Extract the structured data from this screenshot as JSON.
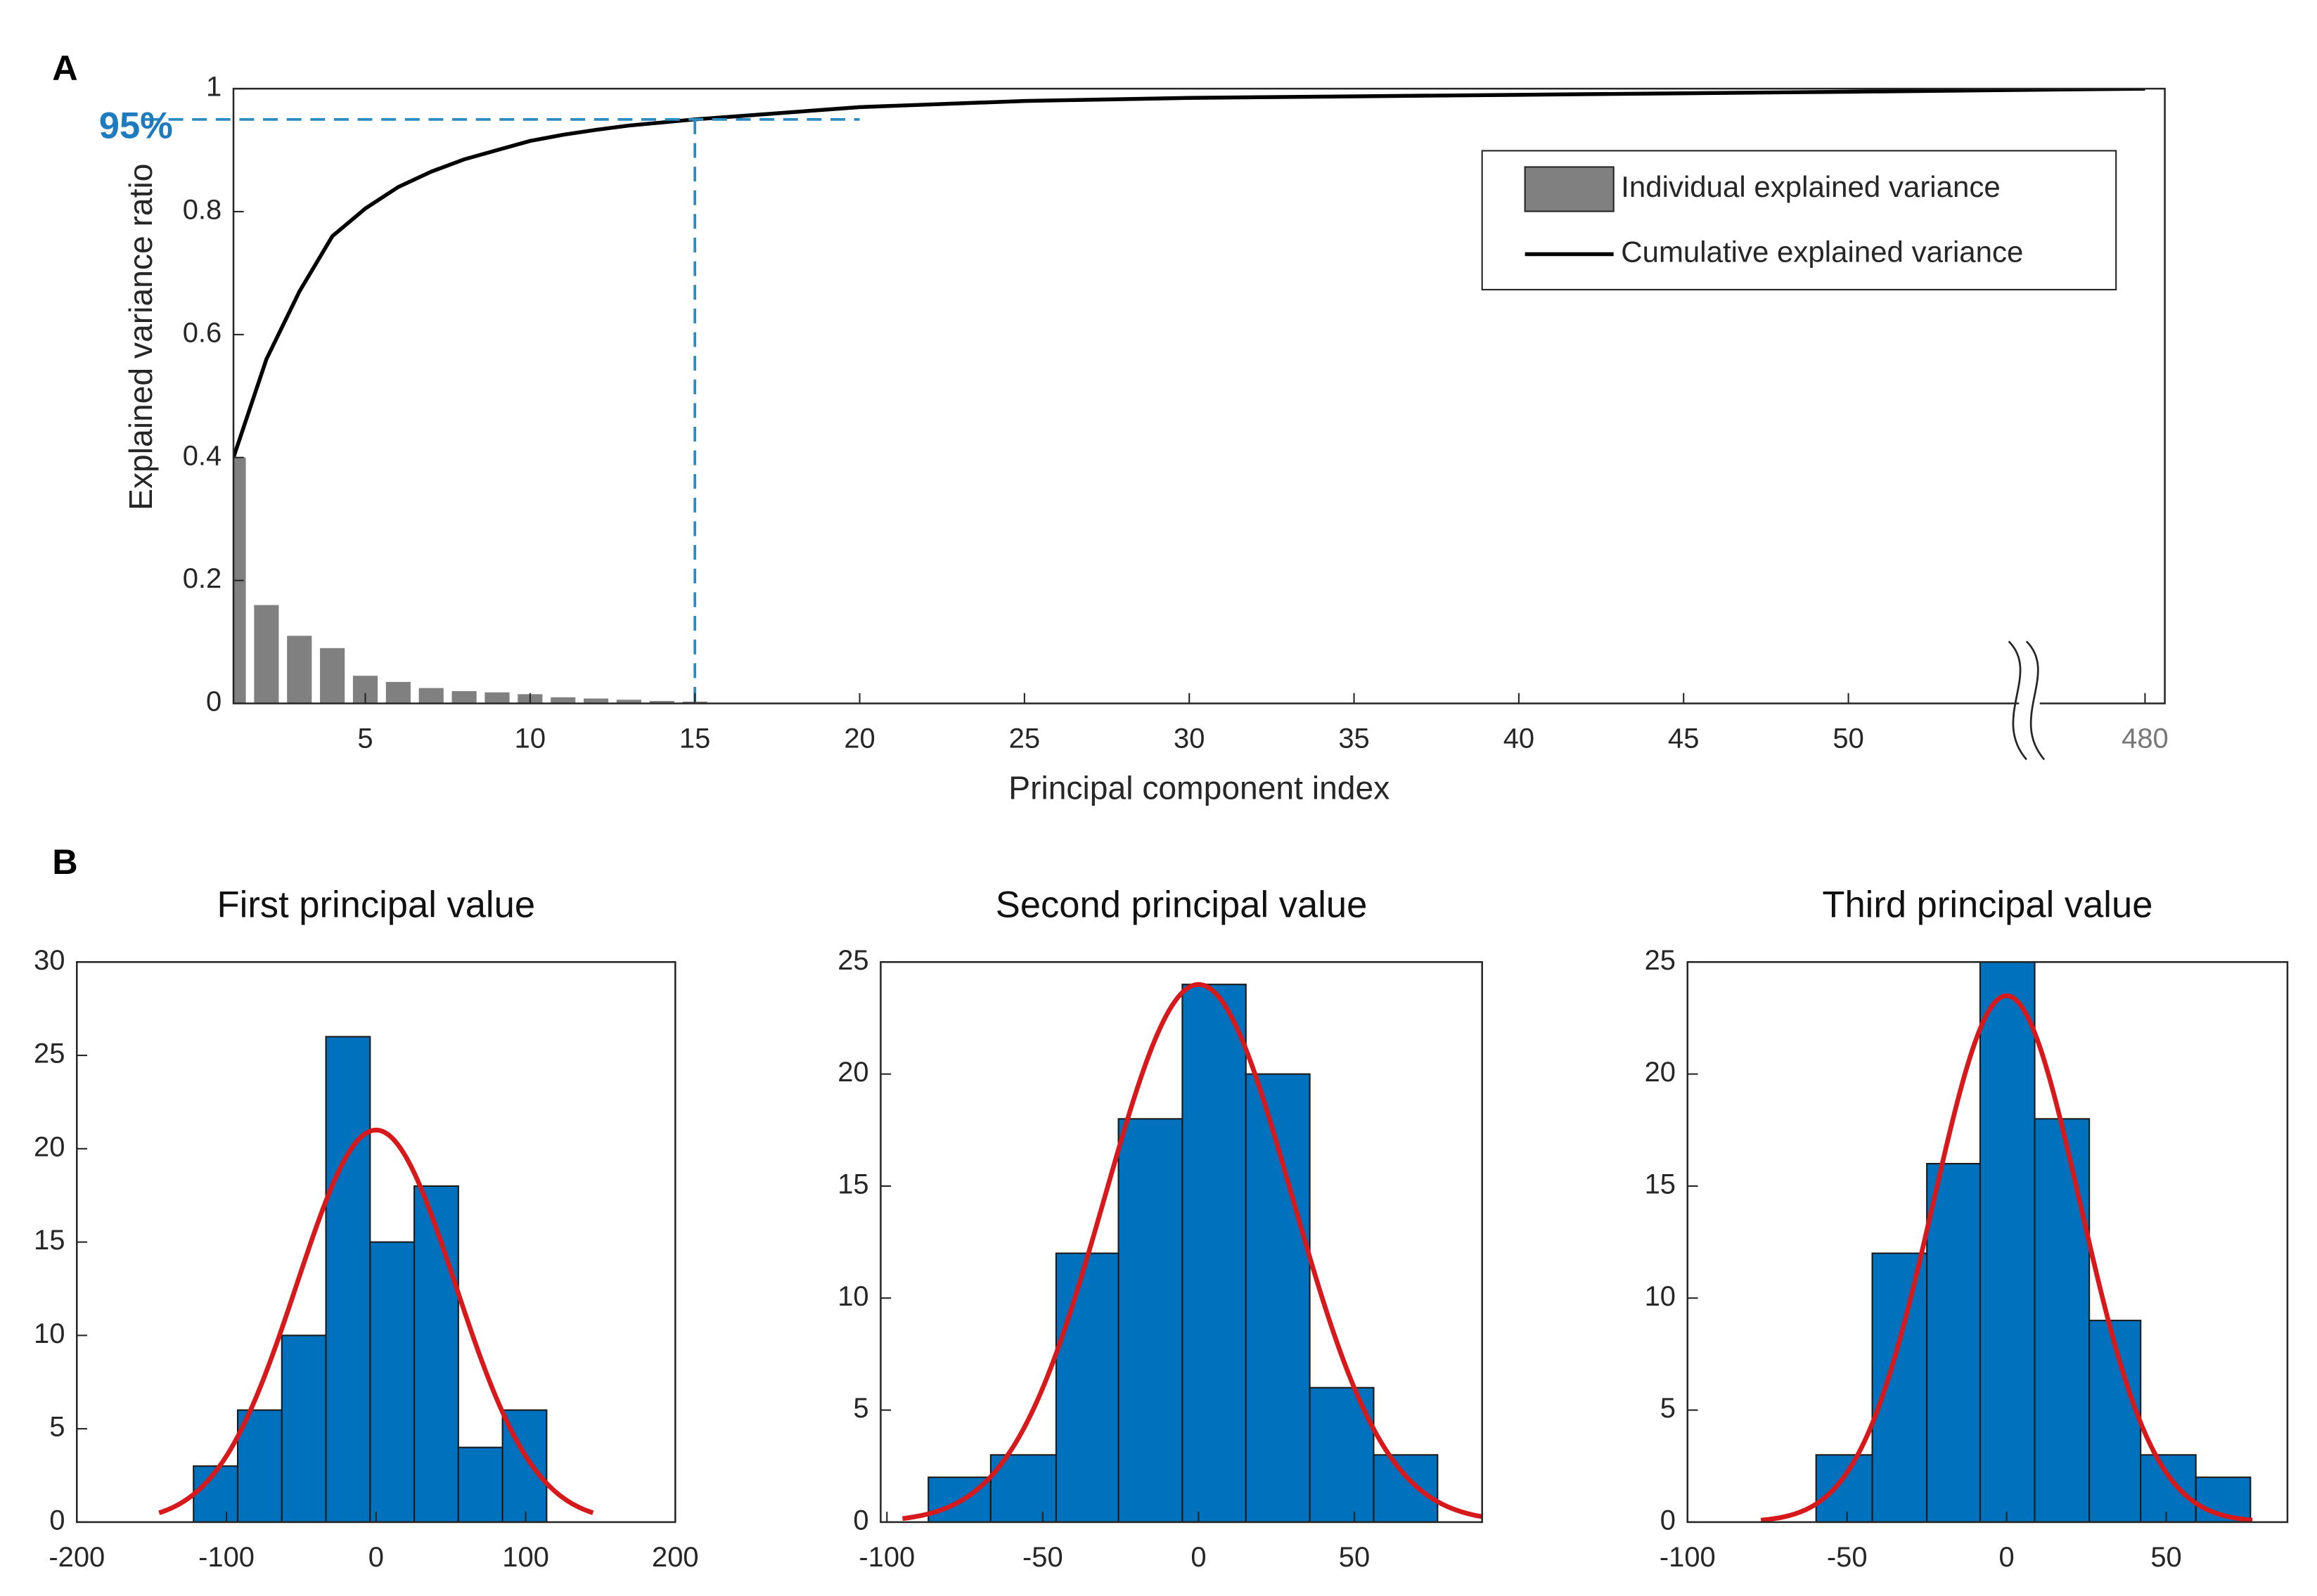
{
  "chart_data": [
    {
      "type": "combo",
      "panel": "A",
      "xlabel": "Principal component index",
      "ylabel": "Explained variance ratio",
      "xlim": [
        1,
        480.6
      ],
      "xbreak": [
        55,
        476
      ],
      "xticks": [
        5,
        10,
        15,
        20,
        25,
        30,
        35,
        40,
        45,
        50,
        480
      ],
      "ylim": [
        0,
        1
      ],
      "yticks": [
        0,
        0.2,
        0.4,
        0.6,
        0.8,
        1
      ],
      "legend": "upper right",
      "series": [
        {
          "name": "Individual explained variance",
          "type": "bar",
          "color": "#808080",
          "x": [
            1,
            2,
            3,
            4,
            5,
            6,
            7,
            8,
            9,
            10,
            11,
            12,
            13,
            14,
            15
          ],
          "values": [
            0.4,
            0.16,
            0.11,
            0.09,
            0.045,
            0.035,
            0.025,
            0.02,
            0.018,
            0.015,
            0.01,
            0.008,
            0.006,
            0.004,
            0.003
          ]
        },
        {
          "name": "Cumulative explained variance",
          "type": "line",
          "color": "#000000",
          "x": [
            1,
            2,
            3,
            4,
            5,
            6,
            7,
            8,
            9,
            10,
            11,
            12,
            13,
            14,
            15,
            20,
            25,
            30,
            40,
            50,
            480
          ],
          "values": [
            0.4,
            0.56,
            0.67,
            0.76,
            0.805,
            0.84,
            0.865,
            0.885,
            0.9,
            0.915,
            0.925,
            0.933,
            0.94,
            0.945,
            0.95,
            0.97,
            0.98,
            0.985,
            0.99,
            0.995,
            1
          ]
        }
      ],
      "reference": {
        "x": 15,
        "y": 0.95,
        "x_end": 20,
        "label": "95%",
        "color": "#2e8bc0"
      }
    },
    {
      "type": "histogram",
      "panel": "B",
      "title": "First principal value",
      "color": "#0072bd",
      "bins": [
        -122,
        -92.5,
        -63,
        -33.5,
        -4,
        25.5,
        55,
        84.5,
        114
      ],
      "values": [
        3,
        6,
        10,
        26,
        15,
        18,
        4,
        6
      ],
      "xlim": [
        -200,
        200
      ],
      "xticks": [
        -200,
        -100,
        0,
        100,
        200
      ],
      "ylim": [
        0,
        30
      ],
      "yticks": [
        0,
        5,
        10,
        15,
        20,
        25,
        30
      ],
      "fit": {
        "mean": 0,
        "std": 53,
        "peak": 21,
        "xrange": [
          -145,
          145
        ],
        "color": "#d7191c"
      }
    },
    {
      "type": "histogram",
      "title": "Second principal value",
      "color": "#0072bd",
      "bins": [
        -86.7,
        -66.7,
        -45.7,
        -25.7,
        -5.2,
        15.2,
        35.7,
        56.2,
        76.7
      ],
      "values": [
        2,
        3,
        12,
        18,
        24,
        20,
        6,
        3
      ],
      "xlim": [
        -102,
        91
      ],
      "xticks": [
        -100,
        -50,
        0,
        50
      ],
      "ylim": [
        0,
        25
      ],
      "yticks": [
        0,
        5,
        10,
        15,
        20,
        25
      ],
      "fit": {
        "mean": 0,
        "std": 30,
        "peak": 24,
        "xrange": [
          -95,
          91
        ],
        "color": "#d7191c"
      }
    },
    {
      "type": "histogram",
      "title": "Third principal value",
      "color": "#0072bd",
      "bins": [
        -59.7,
        -42.1,
        -25,
        -8.3,
        8.8,
        25.9,
        42,
        59.3,
        76.4
      ],
      "values": [
        3,
        12,
        16,
        25,
        18,
        9,
        3,
        2
      ],
      "xlim": [
        -100,
        88
      ],
      "xticks": [
        -100,
        -50,
        0,
        50
      ],
      "ylim": [
        0,
        25
      ],
      "yticks": [
        0,
        5,
        10,
        15,
        20,
        25
      ],
      "fit": {
        "mean": 0,
        "std": 23,
        "peak": 23.5,
        "xrange": [
          -77,
          77
        ],
        "color": "#d7191c"
      }
    }
  ]
}
